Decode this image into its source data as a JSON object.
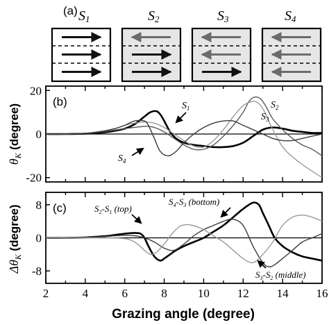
{
  "panel_a": {
    "label": "(a)",
    "states": [
      {
        "name": "S",
        "sub": "1",
        "arrows": [
          "right",
          "right",
          "right"
        ],
        "shaded": false
      },
      {
        "name": "S",
        "sub": "2",
        "arrows": [
          "left",
          "right",
          "right"
        ],
        "shaded": true
      },
      {
        "name": "S",
        "sub": "3",
        "arrows": [
          "left",
          "left",
          "right"
        ],
        "shaded": true
      },
      {
        "name": "S",
        "sub": "4",
        "arrows": [
          "left",
          "left",
          "left"
        ],
        "shaded": true
      }
    ],
    "colors": {
      "shade": "#e6e6e6",
      "arrow_dark": "#111111",
      "arrow_gray": "#6b6b6b"
    }
  },
  "chart_data": [
    {
      "type": "line",
      "panel_label": "(b)",
      "ylabel_symbol": "θ",
      "ylabel_sub": "K",
      "ylabel_unit": "(degree)",
      "xlim": [
        2,
        16
      ],
      "ylim": [
        -22,
        22
      ],
      "yticks": [
        20,
        0,
        -20
      ],
      "zero_line": true,
      "series": [
        {
          "key": "S1",
          "style": "thick-black",
          "x": [
            2,
            3,
            4,
            5,
            5.5,
            6,
            6.5,
            7,
            7.3,
            7.6,
            7.8,
            8,
            8.3,
            8.6,
            9,
            9.5,
            10,
            10.5,
            11,
            11.5,
            12,
            12.5,
            13,
            13.5,
            14,
            14.5,
            15,
            15.5,
            16
          ],
          "y": [
            0,
            0,
            0.2,
            0.8,
            1.5,
            2.5,
            4.5,
            8,
            10,
            10.5,
            9,
            6,
            1,
            -2,
            -4,
            -5,
            -5.5,
            -6,
            -6,
            -5.5,
            -4,
            -1,
            2,
            3,
            2.5,
            1.5,
            1,
            0.5,
            0.5
          ]
        },
        {
          "key": "S2",
          "style": "medium-gray",
          "x": [
            2,
            3,
            4,
            5,
            6,
            7,
            7.5,
            8,
            8.5,
            9,
            9.5,
            10,
            10.5,
            11,
            11.5,
            12,
            12.3,
            12.6,
            12.9,
            13.2,
            13.5,
            14,
            14.5,
            15,
            15.5,
            16
          ],
          "y": [
            0,
            0,
            0.3,
            1.2,
            2.5,
            3.5,
            3,
            1,
            -2,
            -5,
            -7,
            -7,
            -5,
            -1,
            4,
            10,
            15,
            17,
            16,
            12,
            7,
            2,
            -2,
            -5,
            -7,
            -10
          ]
        },
        {
          "key": "S3",
          "style": "light-gray",
          "x": [
            2,
            3,
            4,
            5,
            5.5,
            6,
            6.5,
            7,
            7.5,
            8,
            8.5,
            9,
            9.5,
            10,
            10.5,
            11,
            11.5,
            12,
            12.5,
            12.8,
            13.1,
            13.4,
            13.8,
            14.2,
            15,
            16
          ],
          "y": [
            0,
            0,
            0.3,
            1.5,
            2.5,
            4,
            5,
            5.5,
            5,
            3,
            0,
            -3,
            -5.5,
            -6,
            -3,
            2,
            8,
            13,
            15,
            14,
            10,
            4,
            -3,
            -8,
            -14,
            -20
          ]
        },
        {
          "key": "S4",
          "style": "dark-gray",
          "x": [
            2,
            3,
            4,
            5,
            5.5,
            6,
            6.5,
            7,
            7.2,
            7.5,
            7.8,
            8.2,
            8.6,
            9,
            9.5,
            10,
            10.5,
            11,
            11.5,
            12,
            12.5,
            13,
            13.5,
            14,
            14.5,
            15,
            15.5,
            16
          ],
          "y": [
            0,
            0,
            0.3,
            1.5,
            2.5,
            4,
            6,
            6,
            4,
            -2,
            -8,
            -10,
            -8,
            -4,
            0,
            3,
            5,
            6,
            6,
            4,
            2,
            0,
            -2,
            -3,
            -3,
            -2,
            -1,
            0
          ]
        }
      ],
      "annotations": [
        {
          "base": "S",
          "sub": "1"
        },
        {
          "base": "S",
          "sub": "2"
        },
        {
          "base": "S",
          "sub": "3"
        },
        {
          "base": "S",
          "sub": "4"
        }
      ]
    },
    {
      "type": "line",
      "panel_label": "(c)",
      "ylabel_symbol": "Δθ",
      "ylabel_sub": "K",
      "ylabel_unit": "(degree)",
      "xlabel": "Grazing angle (degree)",
      "xlim": [
        2,
        16
      ],
      "ylim": [
        -11,
        11
      ],
      "xticks": [
        2,
        4,
        6,
        8,
        10,
        12,
        14,
        16
      ],
      "yticks": [
        8,
        0,
        -8
      ],
      "zero_line": true,
      "series": [
        {
          "key": "S2-S1",
          "style": "thick-black",
          "x": [
            2,
            3,
            4,
            5,
            5.5,
            6,
            6.5,
            6.8,
            7,
            7.2,
            7.5,
            7.8,
            8,
            8.3,
            8.6,
            9,
            9.5,
            10,
            10.5,
            11,
            11.5,
            12,
            12.5,
            12.8,
            13,
            13.3,
            13.6,
            14,
            14.5,
            15,
            15.5,
            16
          ],
          "y": [
            0,
            0,
            0.1,
            0.4,
            0.7,
            1,
            1.2,
            1,
            0,
            -2,
            -4.5,
            -5.5,
            -5,
            -4,
            -3,
            -2,
            -1,
            0,
            1.5,
            3,
            5,
            7,
            8.5,
            8,
            6,
            3,
            0,
            -2,
            -3.5,
            -4.5,
            -5,
            -5.5
          ]
        },
        {
          "key": "S3-S2",
          "style": "dark-gray",
          "x": [
            2,
            3,
            4,
            5,
            5.5,
            6,
            6.5,
            7,
            7.5,
            8,
            8.5,
            9,
            9.5,
            10,
            10.5,
            11,
            11.5,
            12,
            12.5,
            13,
            13.3,
            13.6,
            14,
            14.5,
            15,
            15.5,
            16
          ],
          "y": [
            0,
            0,
            0.1,
            0.3,
            0.5,
            0.6,
            0.5,
            0,
            -1,
            -2.5,
            -3,
            -1.5,
            0.5,
            2,
            3,
            4,
            4.5,
            3,
            -2,
            -6,
            -7,
            -6.5,
            -5,
            -3,
            -1,
            0,
            1
          ]
        },
        {
          "key": "S4-S3",
          "style": "light-gray",
          "x": [
            2,
            3,
            4,
            5,
            6,
            6.5,
            7,
            7.3,
            7.6,
            8,
            8.4,
            8.8,
            9.2,
            9.6,
            10,
            10.5,
            11,
            11.5,
            12,
            12.5,
            13,
            13.5,
            14,
            14.5,
            15,
            15.5,
            16
          ],
          "y": [
            0,
            0,
            0,
            0,
            -0.2,
            -1,
            -3,
            -4,
            -3.5,
            -1.5,
            1,
            2.8,
            3.2,
            2.8,
            2,
            0.5,
            -1,
            -3,
            -5,
            -6,
            -4,
            -1,
            3,
            5,
            5.5,
            5,
            4
          ]
        }
      ],
      "annotations": [
        {
          "base": "S",
          "sub1": "2",
          "mid": "-S",
          "sub2": "1",
          "tail": " (top)"
        },
        {
          "base": "S",
          "sub1": "4",
          "mid": "-S",
          "sub2": "3",
          "tail": " (bottom)"
        },
        {
          "base": "S",
          "sub1": "3",
          "mid": "-S",
          "sub2": "2",
          "tail": " (middle)"
        }
      ]
    }
  ]
}
